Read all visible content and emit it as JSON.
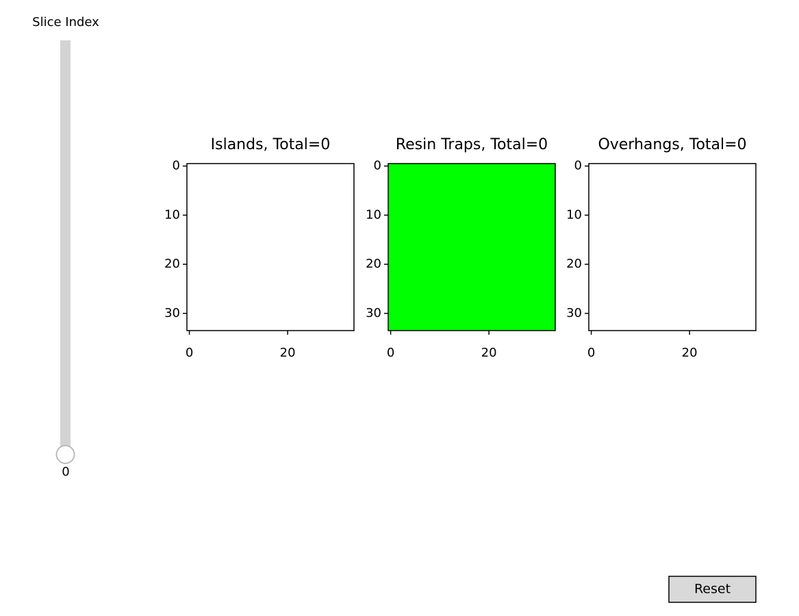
{
  "slider": {
    "label": "Slice Index",
    "value": 0
  },
  "panels": [
    {
      "title": "Islands, Total=0",
      "color": "#ffffff",
      "xlim": [
        -0.5,
        33.5
      ],
      "ylim": [
        33.5,
        -0.5
      ],
      "xticks": [
        0,
        20
      ],
      "yticks": [
        0,
        10,
        20,
        30
      ]
    },
    {
      "title": "Resin Traps, Total=0",
      "color": "#00ff00",
      "xlim": [
        -0.5,
        33.5
      ],
      "ylim": [
        33.5,
        -0.5
      ],
      "xticks": [
        0,
        20
      ],
      "yticks": [
        0,
        10,
        20,
        30
      ]
    },
    {
      "title": "Overhangs, Total=0",
      "color": "#ffffff",
      "xlim": [
        -0.5,
        33.5
      ],
      "ylim": [
        33.5,
        -0.5
      ],
      "xticks": [
        0,
        20
      ],
      "yticks": [
        0,
        10,
        20,
        30
      ]
    }
  ],
  "reset_button": {
    "label": "Reset"
  }
}
